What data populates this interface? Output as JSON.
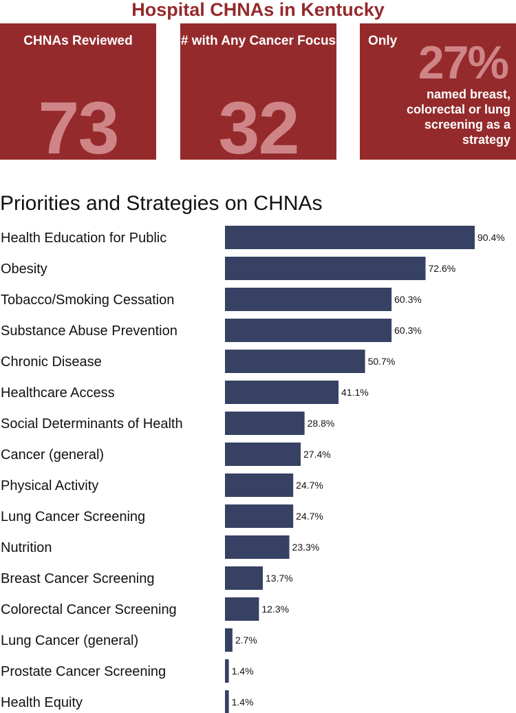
{
  "header": {
    "title": "Hospital CHNAs in Kentucky"
  },
  "cards": [
    {
      "label": "CHNAs Reviewed",
      "value": "73"
    },
    {
      "label": "# with Any Cancer Focus",
      "value": "32"
    },
    {
      "prefix": "Only",
      "value": "27%",
      "description": "named breast, colorectal or lung screening as a strategy"
    }
  ],
  "colors": {
    "card_bg": "#952a2c",
    "card_number": "#cf8587",
    "bar": "#364163",
    "title": "#952a2c"
  },
  "chart_data": {
    "type": "bar",
    "orientation": "horizontal",
    "title": "Priorities and Strategies on CHNAs",
    "categories": [
      "Health Education for Public",
      "Obesity",
      "Tobacco/Smoking Cessation",
      "Substance Abuse Prevention",
      "Chronic Disease",
      "Healthcare Access",
      "Social Determinants of Health",
      "Cancer (general)",
      "Physical Activity",
      "Lung Cancer Screening",
      "Nutrition",
      "Breast Cancer Screening",
      "Colorectal Cancer Screening",
      "Lung Cancer (general)",
      "Prostate Cancer Screening",
      "Health Equity"
    ],
    "values": [
      90.4,
      72.6,
      60.3,
      60.3,
      50.7,
      41.1,
      28.8,
      27.4,
      24.7,
      24.7,
      23.3,
      13.7,
      12.3,
      2.7,
      1.4,
      1.4
    ],
    "value_labels": [
      "90.4%",
      "72.6%",
      "60.3%",
      "60.3%",
      "50.7%",
      "41.1%",
      "28.8%",
      "27.4%",
      "24.7%",
      "24.7%",
      "23.3%",
      "13.7%",
      "12.3%",
      "2.7%",
      "1.4%",
      "1.4%"
    ],
    "xlim": [
      0,
      90.4
    ],
    "grid": false,
    "legend": "none"
  }
}
